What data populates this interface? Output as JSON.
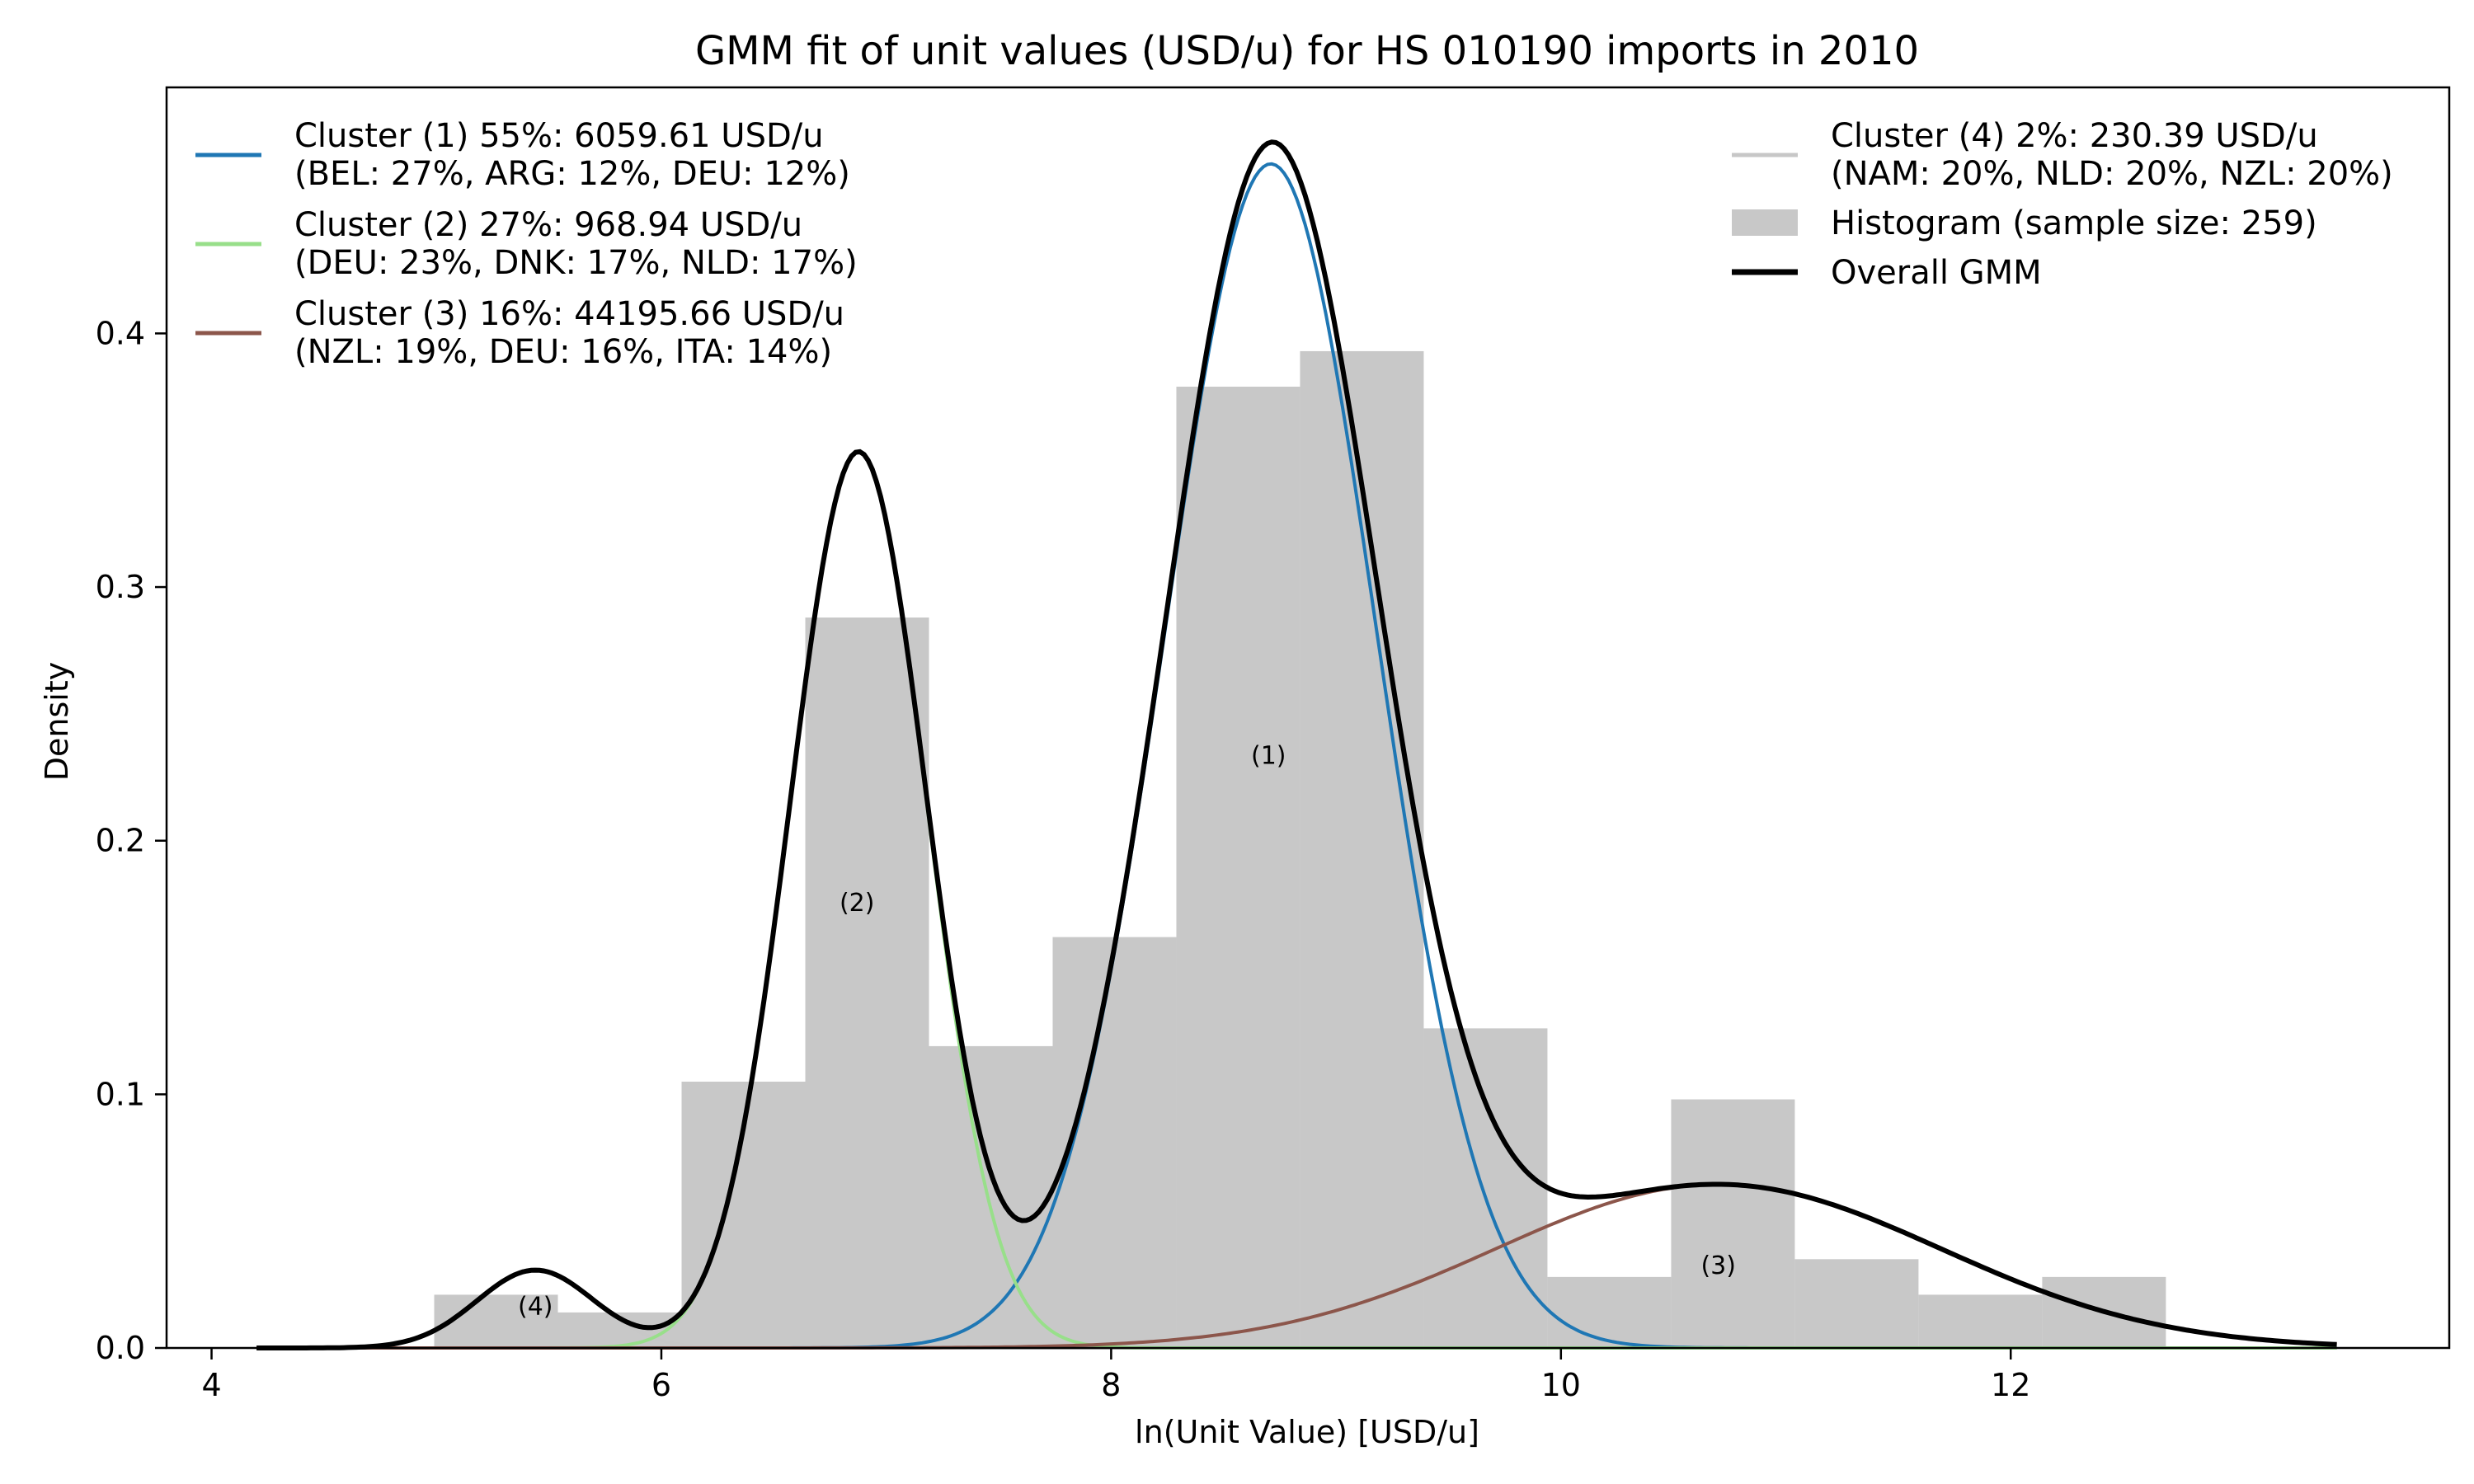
{
  "chart_data": {
    "type": "histogram+line",
    "title": "GMM fit of unit values (USD/u) for HS 010190 imports in 2010",
    "xlabel": "ln(Unit Value) [USD/u]",
    "ylabel": "Density",
    "xlim": [
      3.8,
      13.95
    ],
    "ylim": [
      0.0,
      0.497
    ],
    "xticks": [
      4,
      6,
      8,
      10,
      12
    ],
    "xtick_labels": [
      "4",
      "6",
      "8",
      "10",
      "12"
    ],
    "yticks": [
      0.0,
      0.1,
      0.2,
      0.3,
      0.4
    ],
    "ytick_labels": [
      "0.0",
      "0.1",
      "0.2",
      "0.3",
      "0.4"
    ],
    "grid": false,
    "histogram": {
      "label": "Histogram (sample size: 259)",
      "color": "#c8c8c8",
      "bin_edges": [
        4.99,
        5.54,
        6.09,
        6.64,
        7.19,
        7.74,
        8.29,
        8.84,
        9.39,
        9.94,
        10.49,
        11.04,
        11.59,
        12.14,
        12.69
      ],
      "densities": [
        0.021,
        0.014,
        0.105,
        0.288,
        0.119,
        0.162,
        0.379,
        0.393,
        0.126,
        0.028,
        0.098,
        0.035,
        0.021,
        0.028
      ]
    },
    "components": [
      {
        "name": "Cluster (1) 55%: 6059.61 USD/u",
        "detail": "(BEL: 27%, ARG: 12%, DEU: 12%)",
        "tag": "(1)",
        "weight": 0.55,
        "mean": 8.71,
        "sd": 0.47,
        "color": "#1f77b4",
        "annot_x": 8.7,
        "annot_y": 0.233
      },
      {
        "name": "Cluster (2) 27%: 968.94 USD/u",
        "detail": "(DEU: 23%, DNK: 17%, NLD: 17%)",
        "tag": "(2)",
        "weight": 0.27,
        "mean": 6.876,
        "sd": 0.305,
        "color": "#98df8a",
        "annot_x": 6.87,
        "annot_y": 0.175
      },
      {
        "name": "Cluster (3) 16%: 44195.66 USD/u",
        "detail": "(NZL: 19%, DEU: 16%, ITA: 14%)",
        "tag": "(3)",
        "weight": 0.16,
        "mean": 10.7,
        "sd": 0.99,
        "color": "#8c564b",
        "annot_x": 10.7,
        "annot_y": 0.032
      },
      {
        "name": "Cluster (4) 2%: 230.39 USD/u",
        "detail": "(NAM: 20%, NLD: 20%, NZL: 20%)",
        "tag": "(4)",
        "weight": 0.02,
        "mean": 5.44,
        "sd": 0.26,
        "color": "#c7c7c7",
        "annot_x": 5.44,
        "annot_y": 0.016
      }
    ],
    "overall": {
      "name": "Overall GMM",
      "color": "#000000"
    },
    "curve_x_range": [
      4.2,
      13.45
    ],
    "legend_placement": "top-left and top-right"
  }
}
